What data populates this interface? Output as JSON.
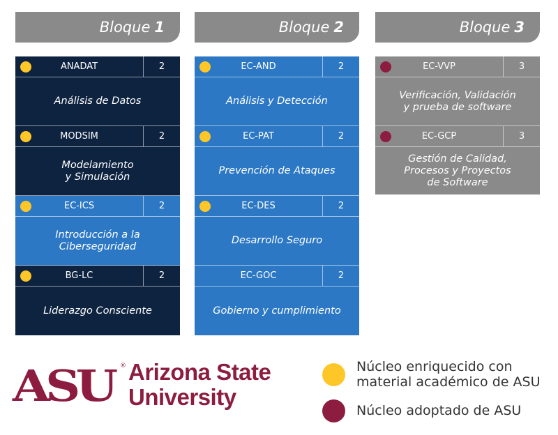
{
  "colors": {
    "header": "#8a8a8b",
    "dark_navy": "#0e2340",
    "mid_blue": "#2c78c4",
    "gray": "#8a8a8b",
    "gold": "#ffc627",
    "maroon": "#8c1d40"
  },
  "blocks": [
    {
      "label": "Bloque",
      "number": "1",
      "courses": [
        {
          "code": "ANADAT",
          "credits": "2",
          "name": "Análisis de Datos",
          "dot": "gold",
          "bg": "dark_navy",
          "h": 70
        },
        {
          "code": "MODSIM",
          "credits": "2",
          "name": "Modelamiento\ny Simulación",
          "dot": "gold",
          "bg": "dark_navy",
          "h": 70
        },
        {
          "code": "EC-ICS",
          "credits": "2",
          "name": "Introducción a la\nCiberseguridad",
          "dot": "gold",
          "bg": "mid_blue",
          "h": 70
        },
        {
          "code": "BG-LC",
          "credits": "2",
          "name": "Liderazgo Consciente",
          "dot": "gold",
          "bg": "dark_navy",
          "h": 70
        }
      ]
    },
    {
      "label": "Bloque",
      "number": "2",
      "courses": [
        {
          "code": "EC-AND",
          "credits": "2",
          "name": "Análisis y Detección",
          "dot": "gold",
          "bg": "mid_blue",
          "h": 70
        },
        {
          "code": "EC-PAT",
          "credits": "2",
          "name": "Prevención de Ataques",
          "dot": "gold",
          "bg": "mid_blue",
          "h": 70
        },
        {
          "code": "EC-DES",
          "credits": "2",
          "name": "Desarrollo Seguro",
          "dot": "gold",
          "bg": "mid_blue",
          "h": 70
        },
        {
          "code": "EC-GOC",
          "credits": "2",
          "name": "Gobierno y cumplimiento",
          "dot": null,
          "bg": "mid_blue",
          "h": 70
        }
      ]
    },
    {
      "label": "Bloque",
      "number": "3",
      "courses": [
        {
          "code": "EC-VVP",
          "credits": "3",
          "name": "Verificación, Validación\ny prueba de software",
          "dot": "maroon",
          "bg": "gray",
          "h": 70
        },
        {
          "code": "EC-GCP",
          "credits": "3",
          "name": "Gestión de Calidad,\nProcesos y Proyectos\nde Software",
          "dot": "maroon",
          "bg": "gray",
          "h": 68
        }
      ]
    }
  ],
  "logo": {
    "mark": "ASU",
    "line1": "Arizona State",
    "line2": "University"
  },
  "legend": [
    {
      "color": "gold",
      "text": "Núcleo enriquecido con\nmaterial académico de ASU"
    },
    {
      "color": "maroon",
      "text": "Núcleo adoptado de ASU"
    }
  ]
}
